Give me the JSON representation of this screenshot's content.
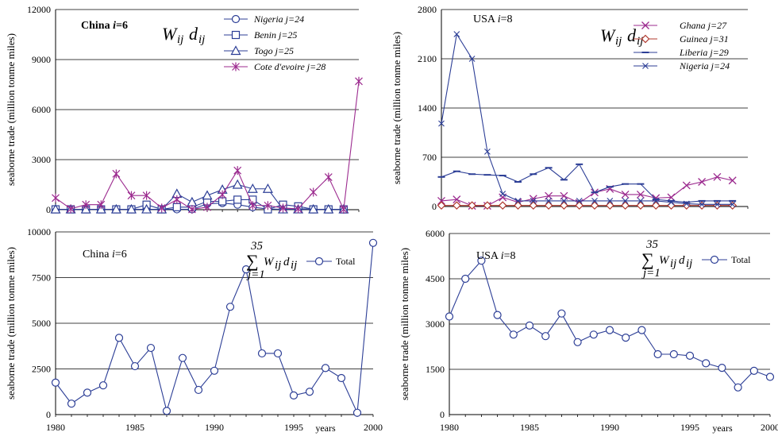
{
  "chart_data": [
    {
      "type": "line",
      "title": "China i=6",
      "title_main": "China ",
      "title_var": "i",
      "title_val": "=6",
      "formula_top": "W",
      "formula_sub1": "ij",
      "formula_mid": "d",
      "formula_sub2": "ij",
      "ylabel": "seaborne trade (million tonme miles)",
      "ylim": [
        0,
        12000
      ],
      "yticks": [
        "0",
        "3000",
        "6000",
        "9000",
        "12000"
      ],
      "x": [
        1980,
        1981,
        1982,
        1983,
        1984,
        1985,
        1986,
        1987,
        1988,
        1989,
        1990,
        1991,
        1992,
        1993,
        1994,
        1995,
        1996,
        1997,
        1998,
        1999,
        2000
      ],
      "legend": "top-center",
      "series": [
        {
          "name": "Nigeria  j=24",
          "marker": "circle",
          "color": "#2c3e96",
          "values": [
            20,
            20,
            20,
            20,
            20,
            20,
            20,
            20,
            20,
            20,
            350,
            400,
            300,
            150,
            40,
            20,
            60,
            20,
            20,
            20,
            null
          ]
        },
        {
          "name": "Benin  j=25",
          "marker": "square",
          "color": "#2c3e96",
          "values": [
            20,
            20,
            20,
            20,
            20,
            20,
            300,
            20,
            150,
            150,
            500,
            500,
            600,
            600,
            20,
            300,
            200,
            20,
            20,
            20,
            null
          ]
        },
        {
          "name": "Togo  j=25",
          "marker": "triangle",
          "color": "#2c3e96",
          "values": [
            20,
            20,
            20,
            20,
            20,
            20,
            20,
            20,
            950,
            450,
            850,
            1200,
            1500,
            1250,
            1250,
            20,
            20,
            20,
            20,
            20,
            null
          ]
        },
        {
          "name": "Cote d'evoire  j=28",
          "marker": "star",
          "color": "#9c2b8f",
          "values": [
            700,
            50,
            300,
            300,
            2150,
            850,
            850,
            100,
            600,
            20,
            150,
            900,
            2350,
            250,
            250,
            100,
            50,
            1050,
            1950,
            20,
            7700
          ]
        }
      ]
    },
    {
      "type": "line",
      "title": "USA i=8",
      "title_main": "USA ",
      "title_var": "i",
      "title_val": "=8",
      "formula_top": "W",
      "formula_sub1": "ij",
      "formula_mid": "d",
      "formula_sub2": "ij",
      "ylabel": "seaborne trade (million tonme miles)",
      "ylim": [
        0,
        2800
      ],
      "yticks": [
        "0",
        "700",
        "1400",
        "2100",
        "2800"
      ],
      "x": [
        1980,
        1981,
        1982,
        1983,
        1984,
        1985,
        1986,
        1987,
        1988,
        1989,
        1990,
        1991,
        1992,
        1993,
        1994,
        1995,
        1996,
        1997,
        1998,
        1999,
        2000
      ],
      "legend": "top-right",
      "series": [
        {
          "name": "Ghana j=27",
          "marker": "cross",
          "color": "#9c2b8f",
          "values": [
            80,
            100,
            10,
            10,
            130,
            60,
            110,
            150,
            150,
            50,
            200,
            250,
            170,
            170,
            120,
            130,
            300,
            350,
            420,
            370,
            null
          ]
        },
        {
          "name": "Guinea j=31",
          "marker": "diamond",
          "color": "#b0392e",
          "values": [
            15,
            15,
            15,
            15,
            15,
            15,
            15,
            15,
            15,
            15,
            15,
            15,
            15,
            15,
            15,
            15,
            15,
            15,
            15,
            15,
            null
          ]
        },
        {
          "name": "Liberia j=29",
          "marker": "dash",
          "color": "#2c3e96",
          "values": [
            420,
            500,
            460,
            450,
            440,
            350,
            460,
            550,
            380,
            600,
            200,
            280,
            320,
            320,
            100,
            80,
            60,
            80,
            80,
            80,
            null
          ]
        },
        {
          "name": "Nigeria j=24",
          "marker": "x",
          "color": "#2c3e96",
          "values": [
            1180,
            2450,
            2100,
            780,
            180,
            80,
            80,
            80,
            80,
            80,
            80,
            80,
            80,
            80,
            80,
            60,
            40,
            30,
            30,
            30,
            null
          ]
        }
      ]
    },
    {
      "type": "line",
      "title": "China i=6",
      "title_main": "China ",
      "title_var": "i",
      "title_val": "=6",
      "sum_top": "35",
      "sum_sign": "∑",
      "sum_bottom": "j=1",
      "formula_top": "W",
      "formula_sub1": "ij",
      "formula_mid": "d",
      "formula_sub2": "ij",
      "ylabel": "seaborne trade (million tonme miles)",
      "ylim": [
        0,
        10000
      ],
      "yticks": [
        "0",
        "2500",
        "5000",
        "7500",
        "10000"
      ],
      "xticks": [
        "1980",
        "1985",
        "1990",
        "1995",
        "2000"
      ],
      "xlabel": "years",
      "x": [
        1980,
        1981,
        1982,
        1983,
        1984,
        1985,
        1986,
        1987,
        1988,
        1989,
        1990,
        1991,
        1992,
        1993,
        1994,
        1995,
        1996,
        1997,
        1998,
        1999,
        2000
      ],
      "legend": "top-center",
      "series": [
        {
          "name": "Total",
          "marker": "circle",
          "color": "#2c3e96",
          "values": [
            1750,
            600,
            1200,
            1600,
            4200,
            2650,
            3650,
            200,
            3100,
            1350,
            2400,
            5900,
            7950,
            3350,
            3350,
            1050,
            1250,
            2550,
            2000,
            100,
            9400
          ]
        }
      ]
    },
    {
      "type": "line",
      "title": "USA i=8",
      "title_main": "USA ",
      "title_var": "i",
      "title_val": "=8",
      "sum_top": "35",
      "sum_sign": "∑",
      "sum_bottom": "j=1",
      "formula_top": "W",
      "formula_sub1": "ij",
      "formula_mid": "d",
      "formula_sub2": "ij",
      "ylabel": "seaborne trade (million tonme miles)",
      "ylim": [
        0,
        6000
      ],
      "yticks": [
        "0",
        "1500",
        "3000",
        "4500",
        "6000"
      ],
      "xticks": [
        "1980",
        "1985",
        "1990",
        "1995",
        "2000"
      ],
      "xlabel": "years",
      "x": [
        1980,
        1981,
        1982,
        1983,
        1984,
        1985,
        1986,
        1987,
        1988,
        1989,
        1990,
        1991,
        1992,
        1993,
        1994,
        1995,
        1996,
        1997,
        1998,
        1999,
        2000
      ],
      "legend": "top-right",
      "series": [
        {
          "name": "Total",
          "marker": "circle",
          "color": "#2c3e96",
          "values": [
            3250,
            4500,
            5100,
            3300,
            2650,
            2950,
            2600,
            3350,
            2400,
            2650,
            2800,
            2550,
            2800,
            2000,
            2000,
            1950,
            1700,
            1550,
            900,
            1450,
            1250
          ]
        }
      ]
    }
  ]
}
